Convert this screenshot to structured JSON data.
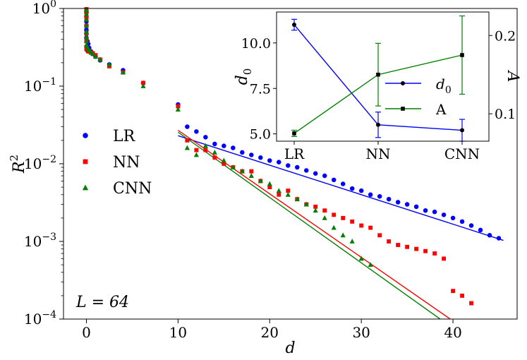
{
  "chart_data": [
    {
      "type": "scatter",
      "xlabel": "d",
      "ylabel": "R",
      "ylabel_sup": "2",
      "yscale": "log",
      "xlim": [
        -2.5,
        47
      ],
      "ylim": [
        0.0001,
        1
      ],
      "xticks": [
        0,
        10,
        20,
        30,
        40
      ],
      "xtick_labels": [
        "0",
        "10",
        "20",
        "30",
        "40"
      ],
      "yticks": [
        0.0001,
        0.001,
        0.01,
        0.1,
        1
      ],
      "ytick_labels": [
        {
          "base": "10",
          "exp": "−4"
        },
        {
          "base": "10",
          "exp": "−3"
        },
        {
          "base": "10",
          "exp": "−2"
        },
        {
          "base": "10",
          "exp": "−1"
        },
        {
          "base": "10",
          "exp": "0"
        }
      ],
      "annotation": "L = 64",
      "legend_position": "center-left",
      "series": [
        {
          "name": "LR",
          "color": "#0000ff",
          "marker": "circle",
          "x": [
            0,
            0,
            0,
            0,
            0,
            0,
            0,
            0,
            0.1,
            0.2,
            0.3,
            0.5,
            0.7,
            1,
            1.5,
            2.5,
            4,
            6.2,
            10,
            11,
            12,
            13,
            14,
            15,
            16,
            17,
            18,
            19,
            20,
            21,
            22,
            23,
            24,
            25,
            26,
            27,
            28,
            29,
            30,
            31,
            32,
            33,
            34,
            35,
            36,
            37,
            38,
            39,
            40,
            41,
            42,
            43,
            44,
            45
          ],
          "y": [
            0.94,
            0.88,
            0.78,
            0.68,
            0.6,
            0.53,
            0.47,
            0.42,
            0.38,
            0.35,
            0.31,
            0.28,
            0.26,
            0.24,
            0.215,
            0.19,
            0.16,
            0.11,
            0.058,
            0.03,
            0.026,
            0.022,
            0.018,
            0.017,
            0.016,
            0.014,
            0.013,
            0.012,
            0.011,
            0.0105,
            0.0095,
            0.009,
            0.0082,
            0.0075,
            0.007,
            0.0062,
            0.0055,
            0.0048,
            0.0045,
            0.004,
            0.0038,
            0.0035,
            0.0032,
            0.003,
            0.0028,
            0.0025,
            0.0024,
            0.0022,
            0.002,
            0.0018,
            0.0016,
            0.0014,
            0.0012,
            0.0011
          ],
          "fit": {
            "x": [
              10,
              45.5
            ],
            "y": [
              0.023,
              0.00103
            ]
          }
        },
        {
          "name": "NN",
          "color": "#ff0000",
          "marker": "square",
          "x": [
            0,
            0,
            0,
            0,
            0,
            0,
            0,
            0,
            0.1,
            0.2,
            0.3,
            0.5,
            0.7,
            1,
            1.5,
            2.5,
            4,
            6.2,
            10,
            11,
            12,
            13,
            14,
            15,
            16,
            17,
            18,
            19,
            20,
            21,
            22,
            23,
            24,
            25,
            26,
            27,
            28,
            29,
            30,
            31,
            32,
            33,
            34,
            35,
            36,
            37,
            38,
            39,
            40,
            41,
            42
          ],
          "y": [
            0.98,
            0.9,
            0.75,
            0.6,
            0.48,
            0.38,
            0.32,
            0.3,
            0.29,
            0.28,
            0.28,
            0.27,
            0.265,
            0.25,
            0.22,
            0.18,
            0.15,
            0.11,
            0.055,
            0.02,
            0.015,
            0.015,
            0.012,
            0.01,
            0.009,
            0.008,
            0.008,
            0.006,
            0.005,
            0.004,
            0.0045,
            0.0035,
            0.003,
            0.0028,
            0.0025,
            0.0022,
            0.002,
            0.0018,
            0.0016,
            0.0015,
            0.0012,
            0.001,
            0.0009,
            0.00085,
            0.0008,
            0.00075,
            0.0007,
            0.0006,
            0.00023,
            0.0002,
            0.00016
          ],
          "fit": {
            "x": [
              10,
              39.7
            ],
            "y": [
              0.027,
              0.0001
            ]
          }
        },
        {
          "name": "CNN",
          "color": "#008000",
          "marker": "triangle",
          "x": [
            0,
            0,
            0,
            0,
            0,
            0,
            0,
            0,
            0.1,
            0.2,
            0.3,
            0.5,
            0.7,
            1,
            1.5,
            2.5,
            4,
            6.2,
            10,
            11,
            12,
            13,
            14,
            15,
            16,
            17,
            18,
            19,
            20,
            21,
            22,
            23,
            24,
            25,
            26,
            27,
            28,
            29,
            30,
            31
          ],
          "y": [
            0.96,
            0.85,
            0.72,
            0.6,
            0.5,
            0.43,
            0.38,
            0.34,
            0.32,
            0.3,
            0.29,
            0.27,
            0.26,
            0.24,
            0.22,
            0.19,
            0.15,
            0.1,
            0.05,
            0.016,
            0.013,
            0.017,
            0.014,
            0.011,
            0.009,
            0.008,
            0.007,
            0.006,
            0.0055,
            0.0045,
            0.004,
            0.0035,
            0.003,
            0.0025,
            0.002,
            0.0015,
            0.0012,
            0.001,
            0.0006,
            0.0005
          ],
          "fit": {
            "x": [
              10,
              38.6
            ],
            "y": [
              0.0255,
              0.0001
            ]
          }
        }
      ]
    },
    {
      "type": "line",
      "inset": true,
      "categories": [
        "LR",
        "NN",
        "CNN"
      ],
      "ylabel": "d",
      "ylabel_sub": "0",
      "y2label": "A",
      "ylim": [
        4.6,
        11.7
      ],
      "y2lim": [
        0.065,
        0.23
      ],
      "yticks": [
        5.0,
        7.5,
        10.0
      ],
      "ytick_labels": [
        "5.0",
        "7.5",
        "10.0"
      ],
      "y2ticks": [
        0.1,
        0.2
      ],
      "y2tick_labels": [
        "0.1",
        "0.2"
      ],
      "legend_position": "center-right",
      "series": [
        {
          "name": "d",
          "name_sub": "0",
          "axis": "left",
          "color": "#0000ff",
          "values": [
            11.0,
            5.5,
            5.2
          ],
          "err": [
            0.3,
            0.7,
            0.6
          ]
        },
        {
          "name": "A",
          "axis": "right",
          "color": "#008000",
          "values": [
            0.075,
            0.15,
            0.175
          ],
          "err": [
            0.004,
            0.04,
            0.05
          ]
        }
      ]
    }
  ]
}
